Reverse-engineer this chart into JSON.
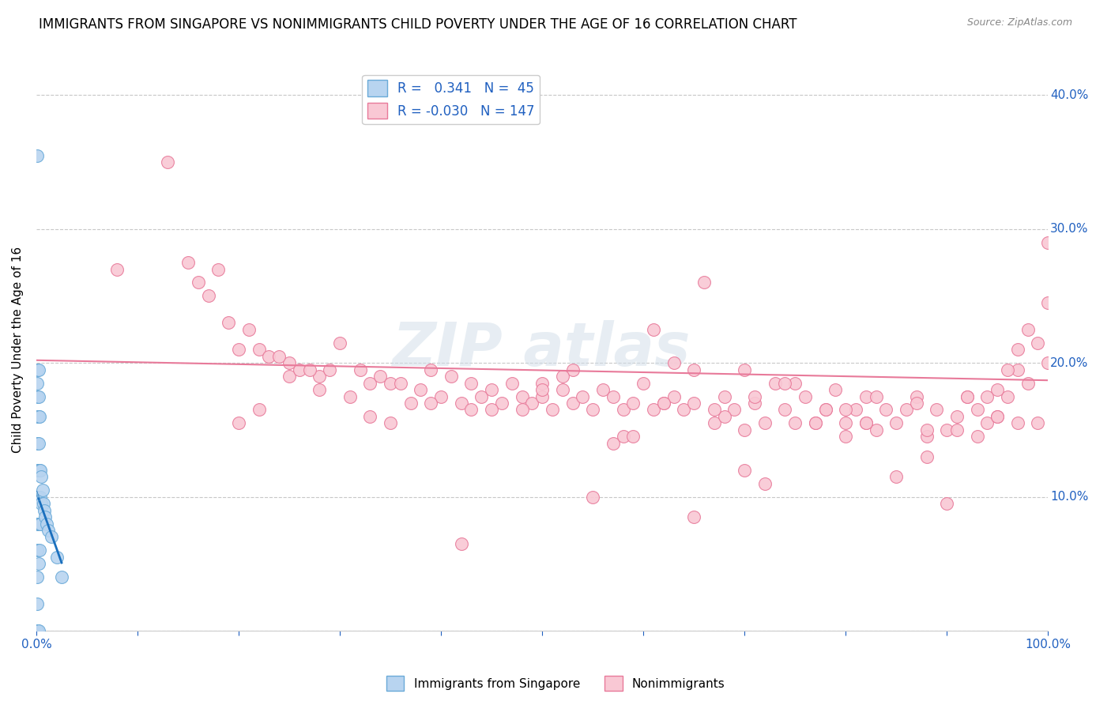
{
  "title": "IMMIGRANTS FROM SINGAPORE VS NONIMMIGRANTS CHILD POVERTY UNDER THE AGE OF 16 CORRELATION CHART",
  "source": "Source: ZipAtlas.com",
  "ylabel": "Child Poverty Under the Age of 16",
  "xlim": [
    0,
    1.0
  ],
  "ylim": [
    0,
    0.42
  ],
  "blue_scatter_x": [
    0.001,
    0.001,
    0.001,
    0.001,
    0.001,
    0.001,
    0.001,
    0.001,
    0.001,
    0.001,
    0.001,
    0.001,
    0.001,
    0.001,
    0.001,
    0.001,
    0.001,
    0.002,
    0.002,
    0.002,
    0.002,
    0.002,
    0.002,
    0.002,
    0.002,
    0.002,
    0.003,
    0.003,
    0.003,
    0.003,
    0.004,
    0.004,
    0.004,
    0.005,
    0.005,
    0.006,
    0.007,
    0.008,
    0.009,
    0.01,
    0.012,
    0.015,
    0.02,
    0.025,
    0.001
  ],
  "blue_scatter_y": [
    0.0,
    0.0,
    0.0,
    0.0,
    0.0,
    0.0,
    0.02,
    0.04,
    0.06,
    0.08,
    0.1,
    0.12,
    0.14,
    0.16,
    0.175,
    0.185,
    0.195,
    0.0,
    0.05,
    0.08,
    0.1,
    0.12,
    0.14,
    0.16,
    0.175,
    0.195,
    0.06,
    0.08,
    0.12,
    0.16,
    0.08,
    0.1,
    0.12,
    0.095,
    0.115,
    0.105,
    0.095,
    0.09,
    0.085,
    0.08,
    0.075,
    0.07,
    0.055,
    0.04,
    0.355
  ],
  "pink_scatter_x": [
    0.08,
    0.13,
    0.16,
    0.18,
    0.19,
    0.2,
    0.21,
    0.22,
    0.23,
    0.25,
    0.25,
    0.26,
    0.28,
    0.29,
    0.3,
    0.31,
    0.32,
    0.33,
    0.34,
    0.35,
    0.36,
    0.38,
    0.39,
    0.4,
    0.41,
    0.42,
    0.43,
    0.44,
    0.45,
    0.46,
    0.47,
    0.48,
    0.49,
    0.5,
    0.5,
    0.51,
    0.52,
    0.53,
    0.54,
    0.55,
    0.56,
    0.57,
    0.58,
    0.59,
    0.6,
    0.61,
    0.62,
    0.63,
    0.64,
    0.65,
    0.66,
    0.67,
    0.68,
    0.69,
    0.7,
    0.71,
    0.72,
    0.73,
    0.74,
    0.75,
    0.76,
    0.77,
    0.78,
    0.79,
    0.8,
    0.81,
    0.82,
    0.83,
    0.84,
    0.85,
    0.86,
    0.87,
    0.88,
    0.89,
    0.9,
    0.91,
    0.92,
    0.93,
    0.94,
    0.95,
    0.96,
    0.97,
    0.98,
    0.99,
    1.0,
    0.17,
    0.24,
    0.27,
    0.37,
    0.43,
    0.53,
    0.57,
    0.62,
    0.68,
    0.75,
    0.82,
    0.88,
    0.92,
    0.97,
    1.0,
    0.22,
    0.35,
    0.48,
    0.58,
    0.67,
    0.77,
    0.87,
    0.95,
    0.15,
    0.42,
    0.65,
    0.72,
    0.85,
    0.33,
    0.55,
    0.7,
    0.8,
    0.9,
    0.97,
    0.99,
    1.0,
    0.98,
    0.96,
    0.94,
    0.63,
    0.7,
    0.8,
    0.91,
    0.2,
    0.39,
    0.52,
    0.61,
    0.74,
    0.83,
    0.93,
    0.28,
    0.45,
    0.59,
    0.71,
    0.82,
    0.88,
    0.95,
    0.5,
    0.65,
    0.78
  ],
  "pink_scatter_y": [
    0.27,
    0.35,
    0.26,
    0.27,
    0.23,
    0.21,
    0.225,
    0.21,
    0.205,
    0.2,
    0.19,
    0.195,
    0.19,
    0.195,
    0.215,
    0.175,
    0.195,
    0.185,
    0.19,
    0.185,
    0.185,
    0.18,
    0.195,
    0.175,
    0.19,
    0.17,
    0.185,
    0.175,
    0.18,
    0.17,
    0.185,
    0.175,
    0.17,
    0.185,
    0.175,
    0.165,
    0.18,
    0.17,
    0.175,
    0.165,
    0.18,
    0.175,
    0.165,
    0.17,
    0.185,
    0.165,
    0.17,
    0.175,
    0.165,
    0.195,
    0.26,
    0.155,
    0.175,
    0.165,
    0.195,
    0.17,
    0.155,
    0.185,
    0.165,
    0.155,
    0.175,
    0.155,
    0.165,
    0.18,
    0.155,
    0.165,
    0.175,
    0.15,
    0.165,
    0.155,
    0.165,
    0.175,
    0.145,
    0.165,
    0.15,
    0.15,
    0.175,
    0.165,
    0.155,
    0.16,
    0.175,
    0.195,
    0.225,
    0.155,
    0.245,
    0.25,
    0.205,
    0.195,
    0.17,
    0.165,
    0.195,
    0.14,
    0.17,
    0.16,
    0.185,
    0.155,
    0.13,
    0.175,
    0.21,
    0.29,
    0.165,
    0.155,
    0.165,
    0.145,
    0.165,
    0.155,
    0.17,
    0.18,
    0.275,
    0.065,
    0.085,
    0.11,
    0.115,
    0.16,
    0.1,
    0.12,
    0.145,
    0.095,
    0.155,
    0.215,
    0.2,
    0.185,
    0.195,
    0.175,
    0.2,
    0.15,
    0.165,
    0.16,
    0.155,
    0.17,
    0.19,
    0.225,
    0.185,
    0.175,
    0.145,
    0.18,
    0.165,
    0.145,
    0.175,
    0.155,
    0.15,
    0.16,
    0.18,
    0.17,
    0.165
  ],
  "blue_line_color": "#1a6fbd",
  "blue_dashed_color": "#7ab0d8",
  "pink_line_color": "#e87a9a",
  "background_color": "#ffffff",
  "grid_color": "#c8c8c8",
  "tick_color": "#2060c0",
  "title_fontsize": 12,
  "axis_label_fontsize": 11,
  "tick_fontsize": 11,
  "source_fontsize": 9
}
